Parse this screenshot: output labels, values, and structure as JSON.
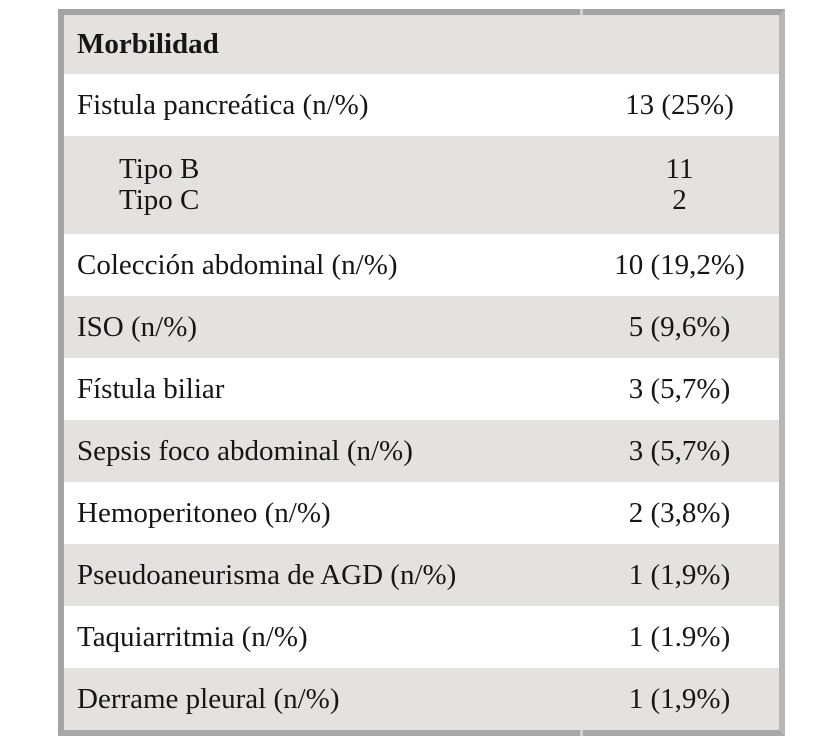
{
  "table": {
    "title": "Morbilidad",
    "colors": {
      "shaded_row": "#e3e2e0",
      "border": "#a4a4a4",
      "text": "#161616"
    },
    "rows": [
      {
        "label": "Fistula pancreática (n/%)",
        "value": "13 (25%)"
      },
      {
        "items": [
          {
            "label": "Tipo B",
            "value": "11"
          },
          {
            "label": "Tipo C",
            "value": "2"
          }
        ]
      },
      {
        "label": "Colección abdominal (n/%)",
        "value": "10 (19,2%)"
      },
      {
        "label": "ISO (n/%)",
        "value": "5 (9,6%)"
      },
      {
        "label": "Fístula biliar",
        "value": "3 (5,7%)"
      },
      {
        "label": "Sepsis foco abdominal (n/%)",
        "value": "3 (5,7%)"
      },
      {
        "label": "Hemoperitoneo (n/%)",
        "value": "2 (3,8%)"
      },
      {
        "label": "Pseudoaneurisma de AGD (n/%)",
        "value": "1 (1,9%)"
      },
      {
        "label": "Taquiarritmia (n/%)",
        "value": "1 (1.9%)"
      },
      {
        "label": "Derrame pleural (n/%)",
        "value": "1 (1,9%)"
      }
    ],
    "chart_data": {
      "type": "table",
      "title": "Morbilidad",
      "categories": [
        "Fistula pancreática",
        "Fistula pancreática - Tipo B",
        "Fistula pancreática - Tipo C",
        "Colección abdominal",
        "ISO",
        "Fístula biliar",
        "Sepsis foco abdominal",
        "Hemoperitoneo",
        "Pseudoaneurisma de AGD",
        "Taquiarritmia",
        "Derrame pleural"
      ],
      "n_values": [
        13,
        11,
        2,
        10,
        5,
        3,
        3,
        2,
        1,
        1,
        1
      ],
      "percent_values": [
        25,
        null,
        null,
        19.2,
        9.6,
        5.7,
        5.7,
        3.8,
        1.9,
        1.9,
        1.9
      ]
    }
  }
}
